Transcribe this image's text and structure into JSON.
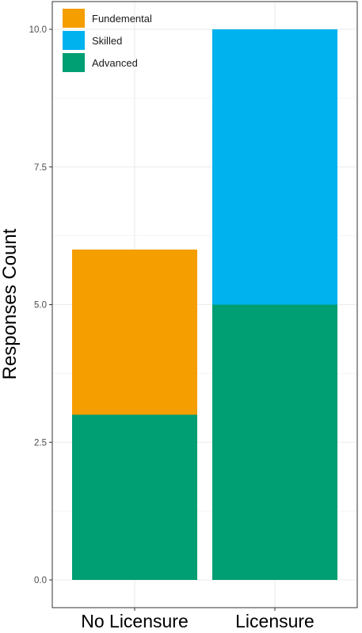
{
  "chart_data": {
    "type": "bar",
    "stacked": true,
    "categories": [
      "No Licensure",
      "Licensure"
    ],
    "series": [
      {
        "name": "Advanced",
        "color": "#009E73",
        "values": [
          3,
          5
        ]
      },
      {
        "name": "Fundemental",
        "color": "#F59E00",
        "values": [
          3,
          0
        ]
      },
      {
        "name": "Skilled",
        "color": "#00B2EE",
        "values": [
          0,
          5
        ]
      }
    ],
    "legend_order": [
      "Fundemental",
      "Skilled",
      "Advanced"
    ],
    "legend_position": "top-left",
    "yticks": [
      "0.0",
      "2.5",
      "5.0",
      "7.5",
      "10.0"
    ],
    "ylim": [
      0,
      10
    ],
    "ylabel": "Responses Count",
    "xlabel": "",
    "grid": true
  }
}
